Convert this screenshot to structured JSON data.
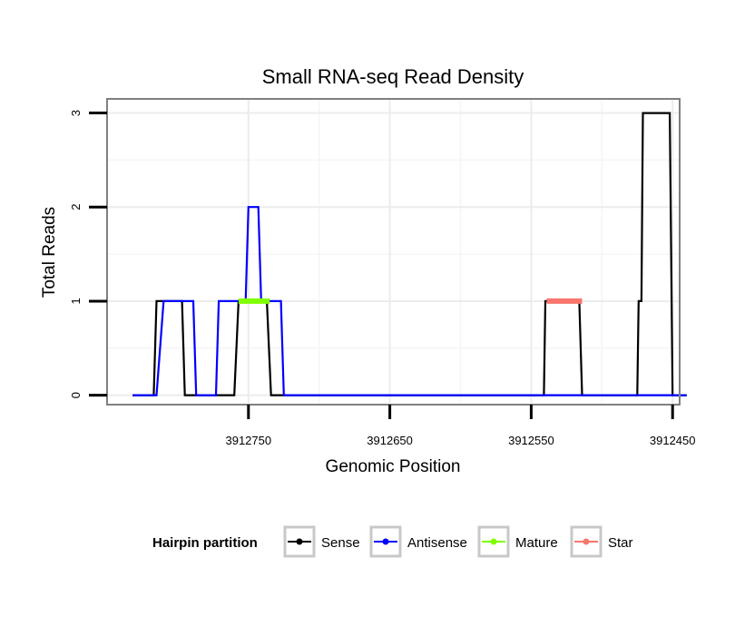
{
  "chart_data": {
    "type": "line",
    "title": "Small RNA-seq Read Density",
    "xlabel": "Genomic Position",
    "ylabel": "Total Reads",
    "xlim": [
      3912850,
      3912445
    ],
    "ylim": [
      -0.1,
      3.15
    ],
    "x_reversed": true,
    "x_ticks": [
      3912750,
      3912650,
      3912550,
      3912450
    ],
    "x_tick_labels": [
      "3912750",
      "3912650",
      "3912550",
      "3912450"
    ],
    "y_ticks": [
      0,
      1,
      2,
      3
    ],
    "y_tick_labels": [
      "0",
      "1",
      "2",
      "3"
    ],
    "x_minor_gridlines": [
      3912700,
      3912600,
      3912500
    ],
    "y_minor_gridlines": [
      0.5,
      1.5,
      2.5
    ],
    "grid": true,
    "legend": {
      "title": "Hairpin partition",
      "position": "bottom"
    },
    "series": [
      {
        "name": "Sense",
        "color": "#000000",
        "line_width": 2.2,
        "points": [
          [
            3912832,
            0
          ],
          [
            3912817,
            0
          ],
          [
            3912815,
            1
          ],
          [
            3912797,
            1
          ],
          [
            3912795,
            0
          ],
          [
            3912760,
            0
          ],
          [
            3912757,
            1
          ],
          [
            3912737,
            1
          ],
          [
            3912734,
            0
          ],
          [
            3912541,
            0
          ],
          [
            3912540,
            1
          ],
          [
            3912516,
            1
          ],
          [
            3912514,
            0
          ],
          [
            3912475,
            0
          ],
          [
            3912474,
            1
          ],
          [
            3912472,
            1
          ],
          [
            3912471,
            3
          ],
          [
            3912464,
            3
          ],
          [
            3912452,
            3
          ],
          [
            3912450,
            0
          ],
          [
            3912440,
            0
          ]
        ]
      },
      {
        "name": "Antisense",
        "color": "#0000ff",
        "line_width": 2.2,
        "points": [
          [
            3912832,
            0
          ],
          [
            3912815,
            0
          ],
          [
            3912810,
            1
          ],
          [
            3912789,
            1
          ],
          [
            3912787,
            0
          ],
          [
            3912773,
            0
          ],
          [
            3912771,
            1
          ],
          [
            3912752,
            1
          ],
          [
            3912750,
            2
          ],
          [
            3912743,
            2
          ],
          [
            3912741,
            1
          ],
          [
            3912727,
            1
          ],
          [
            3912725,
            0
          ],
          [
            3912440,
            0
          ]
        ]
      },
      {
        "name": "Mature",
        "color": "#80ff00",
        "line_width": 6,
        "points": [
          [
            3912757,
            1
          ],
          [
            3912735,
            1
          ]
        ]
      },
      {
        "name": "Star",
        "color": "#f8766d",
        "line_width": 6,
        "points": [
          [
            3912539,
            1
          ],
          [
            3912514,
            1
          ]
        ]
      }
    ]
  }
}
